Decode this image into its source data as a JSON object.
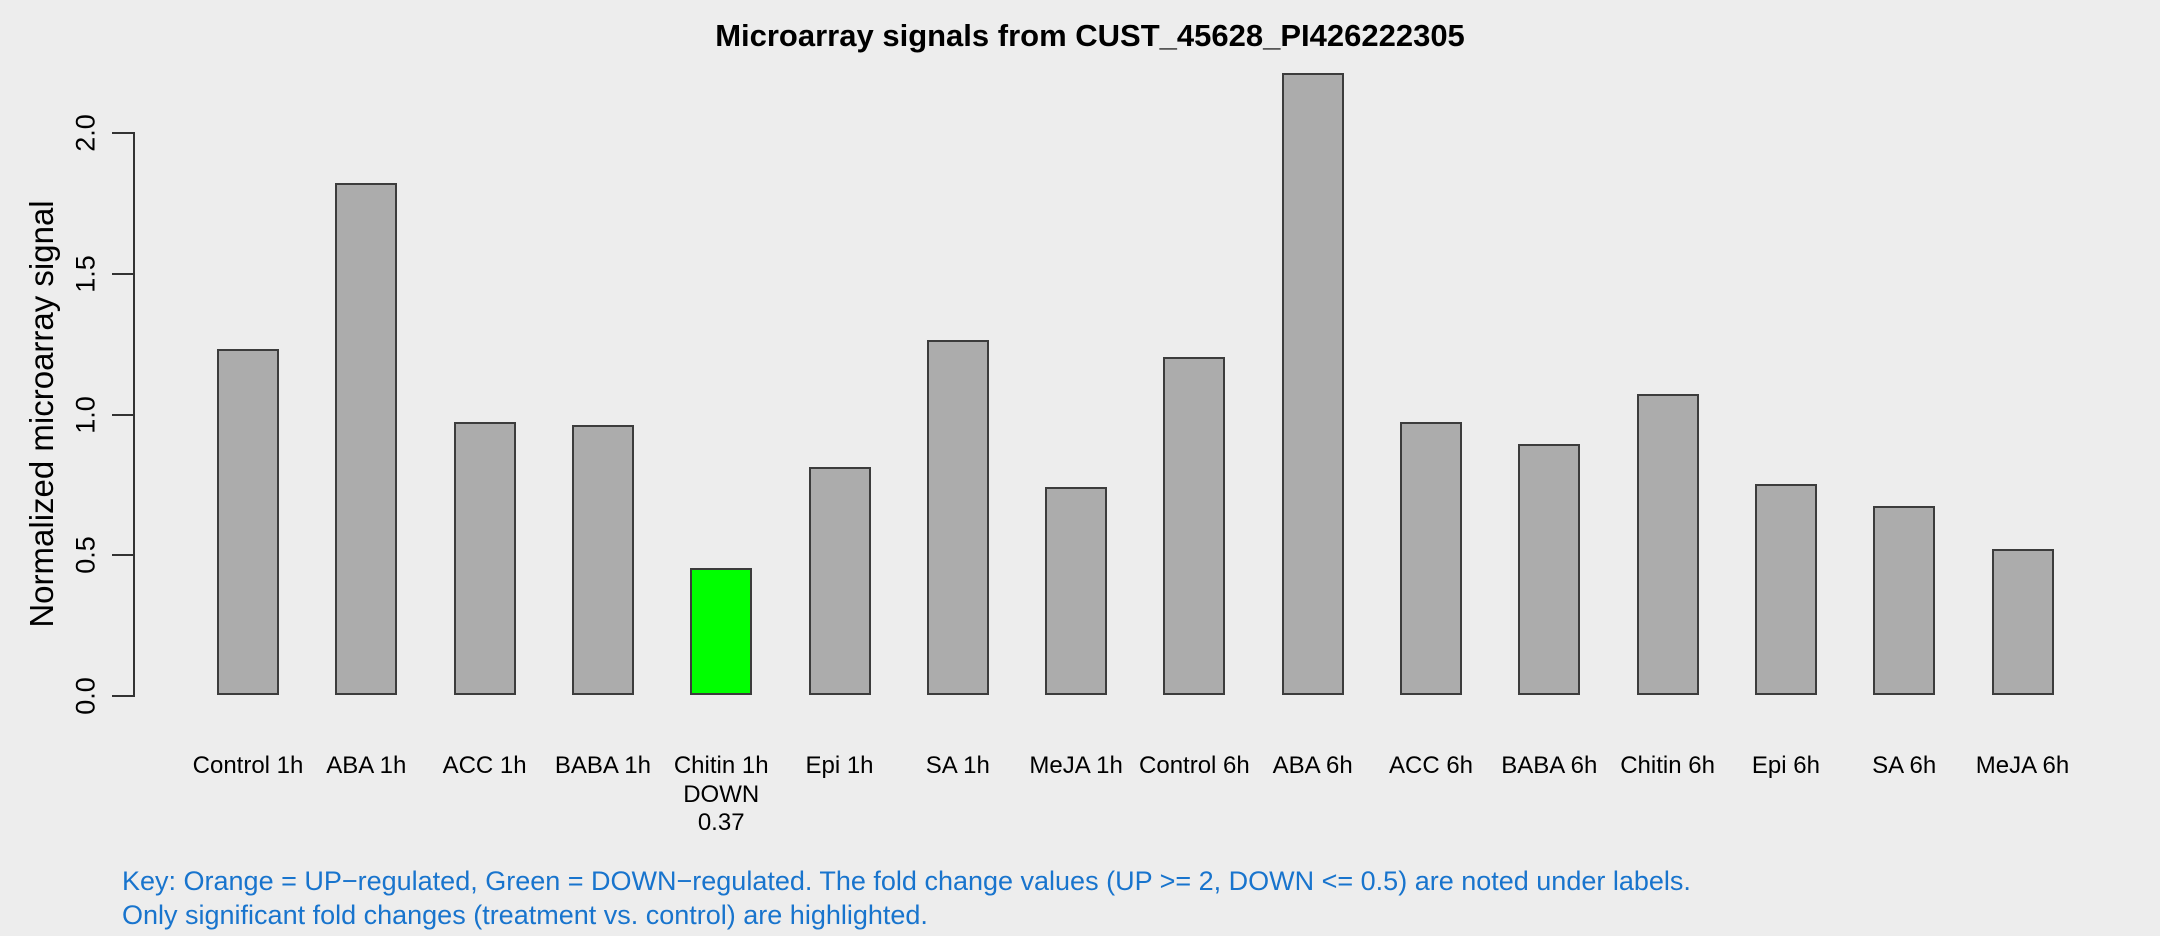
{
  "chart_data": {
    "type": "bar",
    "title": "Microarray signals from CUST_45628_PI426222305",
    "xlabel": "",
    "ylabel": "Normalized microarray signal",
    "ylim": [
      0,
      2.2
    ],
    "grid": false,
    "legend_position": "none",
    "yticks": [
      {
        "value": 0.0,
        "label": "0.0"
      },
      {
        "value": 0.5,
        "label": "0.5"
      },
      {
        "value": 1.0,
        "label": "1.0"
      },
      {
        "value": 1.5,
        "label": "1.5"
      },
      {
        "value": 2.0,
        "label": "2.0"
      }
    ],
    "categories": [
      "Control 1h",
      "ABA 1h",
      "ACC 1h",
      "BABA 1h",
      "Chitin 1h",
      "Epi 1h",
      "SA 1h",
      "MeJA 1h",
      "Control 6h",
      "ABA 6h",
      "ACC 6h",
      "BABA 6h",
      "Chitin 6h",
      "Epi 6h",
      "SA 6h",
      "MeJA 6h"
    ],
    "values": [
      1.23,
      1.82,
      0.97,
      0.96,
      0.45,
      0.81,
      1.26,
      0.74,
      1.2,
      2.21,
      0.97,
      0.89,
      1.07,
      0.75,
      0.67,
      0.52
    ],
    "bars": [
      {
        "label": "Control 1h",
        "value": 1.23
      },
      {
        "label": "ABA 1h",
        "value": 1.82
      },
      {
        "label": "ACC 1h",
        "value": 0.97
      },
      {
        "label": "BABA 1h",
        "value": 0.96
      },
      {
        "label": "Chitin 1h",
        "value": 0.45,
        "highlight": "down",
        "sublabels": [
          "DOWN",
          "0.37"
        ]
      },
      {
        "label": "Epi 1h",
        "value": 0.81
      },
      {
        "label": "SA 1h",
        "value": 1.26
      },
      {
        "label": "MeJA 1h",
        "value": 0.74
      },
      {
        "label": "Control 6h",
        "value": 1.2
      },
      {
        "label": "ABA 6h",
        "value": 2.21
      },
      {
        "label": "ACC 6h",
        "value": 0.97
      },
      {
        "label": "BABA 6h",
        "value": 0.89
      },
      {
        "label": "Chitin 6h",
        "value": 1.07
      },
      {
        "label": "Epi 6h",
        "value": 0.75
      },
      {
        "label": "SA 6h",
        "value": 0.67
      },
      {
        "label": "MeJA 6h",
        "value": 0.52
      }
    ],
    "annotations": [
      {
        "category": "Chitin 1h",
        "direction": "DOWN",
        "fold_change": "0.37"
      }
    ]
  },
  "footer": {
    "key_line1": "Key: Orange = UP−regulated, Green = DOWN−regulated. The fold change values (UP >= 2, DOWN <= 0.5) are noted under labels.",
    "key_line2": "Only significant fold changes (treatment vs. control) are highlighted."
  },
  "colors": {
    "background": "#EDEDED",
    "bar_fill_default": "#ACACAC",
    "bar_border": "#3C3C3C",
    "down_regulated": "#00FF00",
    "up_regulated": "#FFA500",
    "key_text": "#1874CD",
    "axis": "#333333",
    "text": "#000000"
  }
}
